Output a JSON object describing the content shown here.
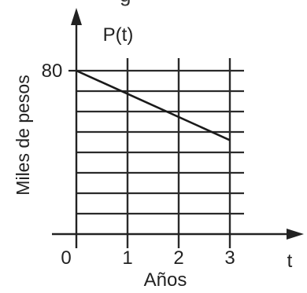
{
  "cropped_caption": "g",
  "chart_data": {
    "type": "line",
    "title": "",
    "function_label": "P(t)",
    "xlabel": "Años",
    "ylabel": "Miles de pesos",
    "x_axis_symbol": "t",
    "origin_label": "0",
    "x_ticks": [
      "1",
      "2",
      "3"
    ],
    "y_tick_labels": [
      {
        "value": 80,
        "label": "80"
      }
    ],
    "xlim": [
      0,
      3
    ],
    "ylim": [
      0,
      80
    ],
    "grid": true,
    "y_gridlines": [
      10,
      20,
      30,
      40,
      50,
      60,
      70,
      80
    ],
    "series": [
      {
        "x": [
          0,
          3
        ],
        "y": [
          80,
          46
        ]
      }
    ],
    "colors": {
      "axis": "#222222",
      "grid": "#2a2a2a",
      "line": "#1a1a1a"
    }
  }
}
